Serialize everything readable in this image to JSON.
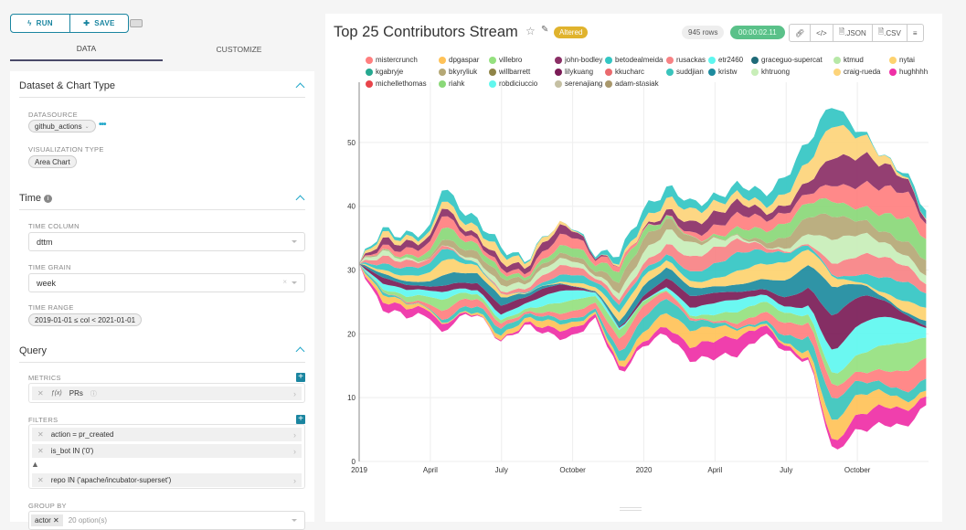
{
  "toolbar": {
    "run_label": "RUN",
    "save_label": "SAVE",
    "run_icon": "bolt-icon",
    "save_icon": "plus-circle-icon",
    "keyboard_icon": "keyboard-icon"
  },
  "tabs": [
    {
      "label": "DATA",
      "active": true
    },
    {
      "label": "CUSTOMIZE",
      "active": false
    }
  ],
  "sections": {
    "dataset": {
      "title": "Dataset & Chart Type",
      "datasource_label": "DATASOURCE",
      "datasource_value": "github_actions",
      "viz_label": "VISUALIZATION TYPE",
      "viz_value": "Area Chart"
    },
    "time": {
      "title": "Time",
      "time_column_label": "TIME COLUMN",
      "time_column_value": "dttm",
      "time_grain_label": "TIME GRAIN",
      "time_grain_value": "week",
      "time_range_label": "TIME RANGE",
      "time_range_value": "2019-01-01 ≤ col < 2021-01-01"
    },
    "query": {
      "title": "Query",
      "metrics_label": "METRICS",
      "metrics": [
        "PRs"
      ],
      "filters_label": "FILTERS",
      "filters": [
        "action = pr_created",
        "is_bot IN ('0')",
        "repo IN ('apache/incubator-superset')"
      ],
      "group_by_label": "GROUP BY",
      "group_by_value": "actor",
      "group_by_placeholder": "20 option(s)"
    }
  },
  "header": {
    "title": "Top 25 Contributors Stream",
    "altered_badge": "Altered",
    "row_count": "945 rows",
    "timer": "00:00:02.11",
    "actions": [
      "link-icon",
      "embed-code-icon",
      ".JSON",
      ".CSV",
      "menu-icon"
    ],
    "action_labels": {
      "json": ".JSON",
      "csv": ".CSV"
    }
  },
  "colors": {
    "accent": "#1a85a0",
    "altered": "#e0b32d",
    "timer": "#5ac189"
  },
  "chart_data": {
    "type": "area",
    "title": "Top 25 Contributors Stream",
    "style": "stream",
    "xlabel": "",
    "ylabel": "",
    "ylim": [
      0,
      58
    ],
    "yticks": [
      0,
      10,
      20,
      30,
      40,
      50
    ],
    "xticks": [
      "2019",
      "April",
      "July",
      "October",
      "2020",
      "April",
      "July",
      "October"
    ],
    "x_range": [
      "2019-01-01",
      "2020-12-31"
    ],
    "grid": true,
    "legend_position": "top",
    "series": [
      {
        "name": "mistercrunch",
        "color": "#ff7f7f"
      },
      {
        "name": "dpgaspar",
        "color": "#ffc258"
      },
      {
        "name": "villebro",
        "color": "#95e17f"
      },
      {
        "name": "john-bodley",
        "color": "#8b2f66"
      },
      {
        "name": "betodealmeida",
        "color": "#33c6c3"
      },
      {
        "name": "rusackas",
        "color": "#f78284"
      },
      {
        "name": "etr2460",
        "color": "#5ef7f0"
      },
      {
        "name": "graceguo-supercat",
        "color": "#1f6a78"
      },
      {
        "name": "ktmud",
        "color": "#b7e8a7"
      },
      {
        "name": "nytai",
        "color": "#fdd26f"
      },
      {
        "name": "kgabryje",
        "color": "#26a890"
      },
      {
        "name": "bkyryliuk",
        "color": "#b5a876"
      },
      {
        "name": "willbarrett",
        "color": "#8f8447"
      },
      {
        "name": "lilykuang",
        "color": "#7b1c57"
      },
      {
        "name": "kkucharc",
        "color": "#ea6a6e"
      },
      {
        "name": "suddjian",
        "color": "#3ac4bc"
      },
      {
        "name": "kristw",
        "color": "#1d8b9e"
      },
      {
        "name": "khtruong",
        "color": "#c8eeb8"
      },
      {
        "name": "craig-rueda",
        "color": "#fdd47a"
      },
      {
        "name": "hughhhh",
        "color": "#ef2fa6"
      },
      {
        "name": "michellethomas",
        "color": "#e8444a"
      },
      {
        "name": "riahk",
        "color": "#8ad878"
      },
      {
        "name": "robdiciuccio",
        "color": "#62f7ee"
      },
      {
        "name": "serenajiang",
        "color": "#c5c0a3"
      },
      {
        "name": "adam-stasiak",
        "color": "#a9986c"
      }
    ],
    "envelope": {
      "note": "approximate visible top/bottom of the stacked stream read from the axis",
      "x_months": [
        0,
        1,
        2,
        3,
        3.5,
        4,
        5,
        6,
        7,
        8,
        9,
        10,
        11,
        12,
        13,
        14,
        15,
        16,
        17,
        18,
        19,
        20,
        20.5,
        21,
        22,
        23,
        23.9
      ],
      "top": [
        31,
        36,
        36,
        36,
        43,
        41,
        38,
        33,
        32,
        36,
        37,
        33,
        32,
        40,
        43,
        40,
        42,
        43,
        42,
        45,
        50,
        57,
        54,
        52,
        48,
        46,
        39
      ],
      "bottom": [
        31,
        24,
        22.5,
        23,
        20,
        22,
        23,
        19,
        21,
        20,
        19.5,
        22,
        14,
        18,
        20,
        16,
        16,
        17,
        20,
        17,
        16,
        0.5,
        3,
        5,
        6,
        5,
        9
      ]
    },
    "band_order_bottom_to_top": [
      "hughhhh",
      "dpgaspar",
      "suddjian",
      "mistercrunch",
      "villebro",
      "etr2460",
      "lilykuang",
      "kristw",
      "nytai",
      "betodealmeida",
      "rusackas",
      "khtruong",
      "bkyryliuk",
      "riahk",
      "mistercrunch",
      "john-bodley",
      "craig-rueda",
      "betodealmeida"
    ]
  }
}
